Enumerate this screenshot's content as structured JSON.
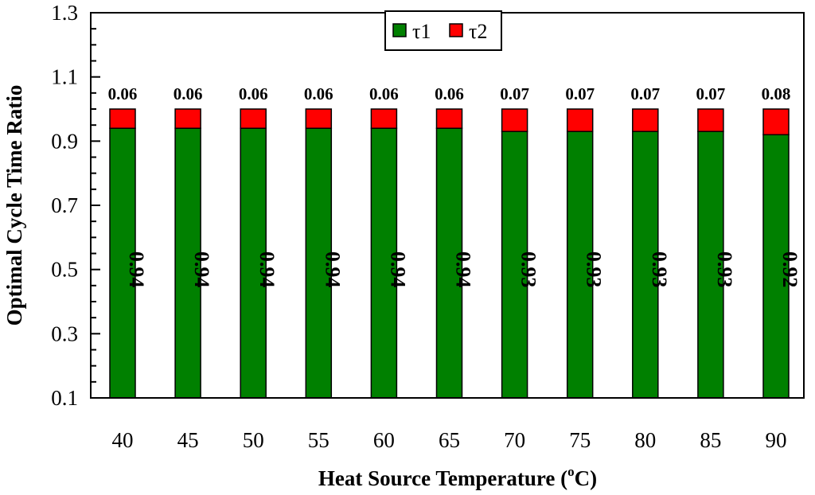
{
  "chart_data": {
    "type": "bar",
    "stacked": true,
    "categories": [
      "40",
      "45",
      "50",
      "55",
      "60",
      "65",
      "70",
      "75",
      "80",
      "85",
      "90"
    ],
    "series": [
      {
        "name": "τ1",
        "color": "#008000",
        "values": [
          0.94,
          0.94,
          0.94,
          0.94,
          0.94,
          0.94,
          0.93,
          0.93,
          0.93,
          0.93,
          0.92
        ],
        "labels": [
          "0.94",
          "0.94",
          "0.94",
          "0.94",
          "0.94",
          "0.94",
          "0.93",
          "0.93",
          "0.93",
          "0.93",
          "0.92"
        ]
      },
      {
        "name": "τ2",
        "color": "#ff0000",
        "values": [
          0.06,
          0.06,
          0.06,
          0.06,
          0.06,
          0.06,
          0.07,
          0.07,
          0.07,
          0.07,
          0.08
        ],
        "labels": [
          "0.06",
          "0.06",
          "0.06",
          "0.06",
          "0.06",
          "0.06",
          "0.07",
          "0.07",
          "0.07",
          "0.07",
          "0.08"
        ]
      }
    ],
    "ylim": [
      0.1,
      1.3
    ],
    "yticks": [
      "0.1",
      "0.3",
      "0.5",
      "0.7",
      "0.9",
      "1.1",
      "1.3"
    ],
    "xlabel": "Heat Source Temperature (",
    "xlabel_sup": "o",
    "xlabel_end": "C)",
    "ylabel": "Optimal Cycle Time Ratio",
    "legend_position": "top-center",
    "grid": false
  }
}
